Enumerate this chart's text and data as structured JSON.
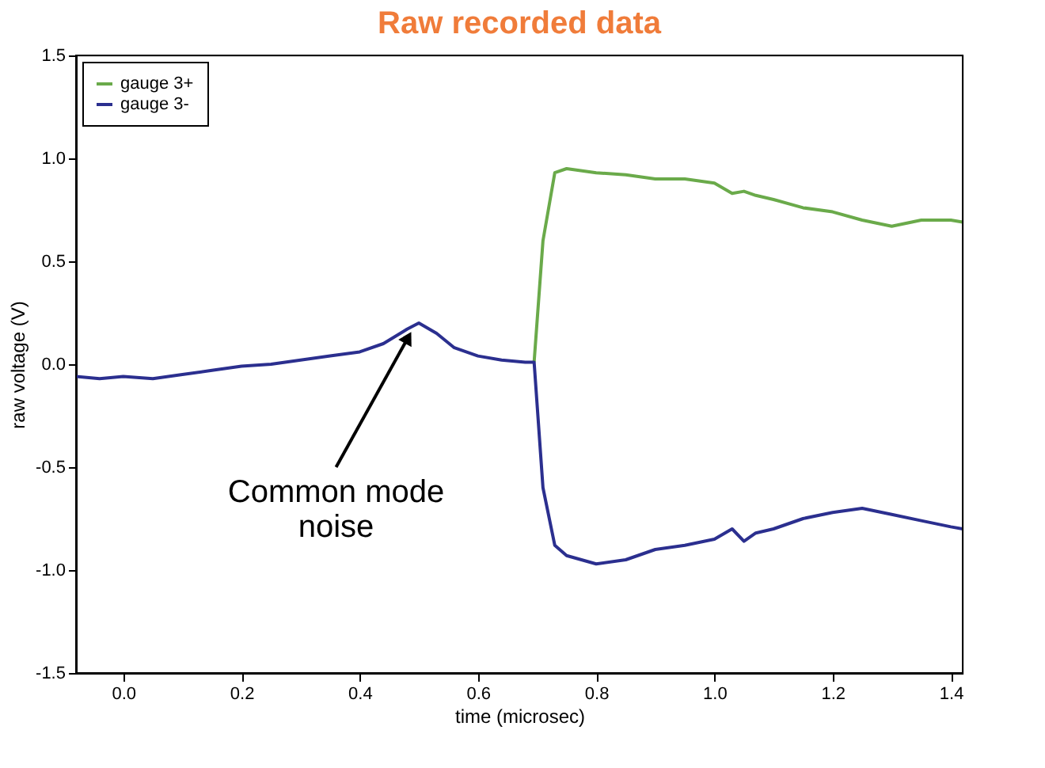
{
  "chart_data": {
    "type": "line",
    "title": "Raw recorded data",
    "xlabel": "time (microsec)",
    "ylabel": "raw voltage (V)",
    "x": [
      -0.08,
      -0.04,
      0,
      0.05,
      0.1,
      0.15,
      0.2,
      0.25,
      0.3,
      0.35,
      0.4,
      0.44,
      0.48,
      0.5,
      0.53,
      0.56,
      0.6,
      0.64,
      0.68,
      0.695,
      0.71,
      0.73,
      0.75,
      0.8,
      0.85,
      0.9,
      0.95,
      1.0,
      1.03,
      1.05,
      1.07,
      1.1,
      1.15,
      1.2,
      1.25,
      1.3,
      1.35,
      1.4,
      1.42
    ],
    "series": [
      {
        "name": "gauge 3+",
        "color": "#6aaa4a",
        "values": [
          null,
          null,
          null,
          null,
          null,
          null,
          null,
          null,
          null,
          null,
          null,
          null,
          null,
          null,
          null,
          null,
          null,
          null,
          null,
          0.01,
          0.6,
          0.93,
          0.95,
          0.93,
          0.92,
          0.9,
          0.9,
          0.88,
          0.83,
          0.84,
          0.82,
          0.8,
          0.76,
          0.74,
          0.7,
          0.67,
          0.7,
          0.7,
          0.69
        ]
      },
      {
        "name": "gauge 3-",
        "color": "#2b2f8f",
        "values": [
          -0.06,
          -0.07,
          -0.06,
          -0.07,
          -0.05,
          -0.03,
          -0.01,
          0.0,
          0.02,
          0.04,
          0.06,
          0.1,
          0.17,
          0.2,
          0.15,
          0.08,
          0.04,
          0.02,
          0.01,
          0.01,
          -0.6,
          -0.88,
          -0.93,
          -0.97,
          -0.95,
          -0.9,
          -0.88,
          -0.85,
          -0.8,
          -0.86,
          -0.82,
          -0.8,
          -0.75,
          -0.72,
          -0.7,
          -0.73,
          -0.76,
          -0.79,
          -0.8
        ]
      }
    ],
    "xlim": [
      -0.08,
      1.42
    ],
    "xticks": [
      {
        "value": 0,
        "label": "0.0"
      },
      {
        "value": 0.2,
        "label": "0.2"
      },
      {
        "value": 0.4,
        "label": "0.4"
      },
      {
        "value": 0.6,
        "label": "0.6"
      },
      {
        "value": 0.8,
        "label": "0.8"
      },
      {
        "value": 1.0,
        "label": "1.0"
      },
      {
        "value": 1.2,
        "label": "1.2"
      },
      {
        "value": 1.4,
        "label": "1.4"
      }
    ],
    "ylim": [
      -1.5,
      1.5
    ],
    "yticks": [
      {
        "value": -1.5,
        "label": "-1.5"
      },
      {
        "value": -1.0,
        "label": "-1.0"
      },
      {
        "value": -0.5,
        "label": "-0.5"
      },
      {
        "value": 0,
        "label": "0.0"
      },
      {
        "value": 0.5,
        "label": "0.5"
      },
      {
        "value": 1.0,
        "label": "1.0"
      },
      {
        "value": 1.5,
        "label": "1.5"
      }
    ],
    "annotations": [
      {
        "text": "Common mode noise",
        "x": 0.48,
        "y": 0.12
      }
    ],
    "legend": "top left",
    "grid": false,
    "marker": "none",
    "line_style": "solid"
  }
}
